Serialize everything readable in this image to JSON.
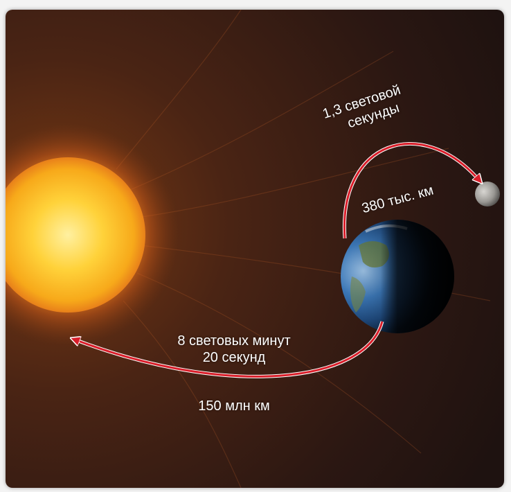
{
  "moon_time": [
    "1,3 световой",
    "секунды"
  ],
  "moon_distance": "380 тыс. км",
  "sun_time": [
    "8 световых минут",
    "20 секунд"
  ],
  "sun_distance": "150 млн км",
  "colors": {
    "space": "#2a1812",
    "sun_core": "#ffd23a",
    "sun_edge": "#f29a12",
    "earth_ocean": "#2e5f9a",
    "arrow": "#d91e2a",
    "text": "#ffffff"
  },
  "icons": [
    "sun-icon",
    "earth-icon",
    "moon-icon",
    "arrow-head-icon"
  ]
}
